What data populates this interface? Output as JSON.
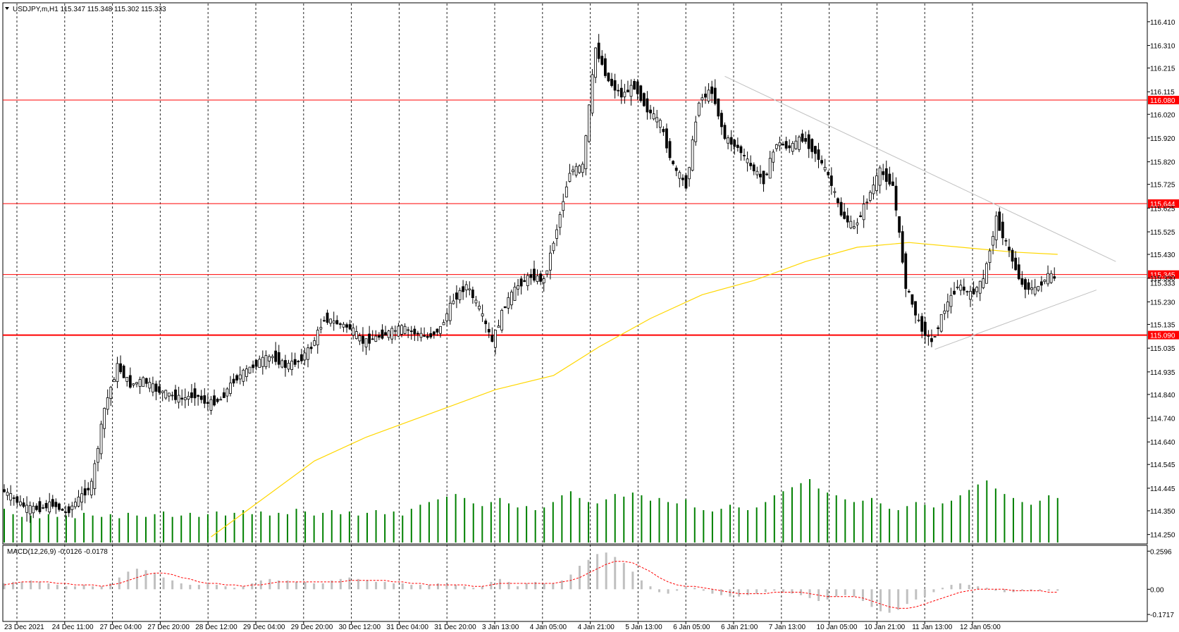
{
  "header": {
    "symbol_line": "USDJPY,m,H1  115.347 115.348 115.302 115.333",
    "macd_label": "MACD(12,26,9) -0.0126 -0.0178"
  },
  "colors": {
    "background": "#ffffff",
    "candle": "#000000",
    "grid": "#000000",
    "level_line": "#ff0000",
    "level_tag_bg": "#ff0000",
    "ma_line": "#ffd700",
    "trendline": "#c0c0c0",
    "volume": "#008000",
    "macd_hist": "#c0c0c0",
    "macd_signal": "#ff0000"
  },
  "chart_data": [
    {
      "type": "candlestick",
      "title": "",
      "x_tick_labels": [
        "23 Dec 2021",
        "24 Dec 11:00",
        "27 Dec 04:00",
        "27 Dec 20:00",
        "28 Dec 12:00",
        "29 Dec 04:00",
        "29 Dec 20:00",
        "30 Dec 12:00",
        "31 Dec 04:00",
        "31 Dec 20:00",
        "3 Jan 13:00",
        "4 Jan 05:00",
        "4 Jan 21:00",
        "5 Jan 13:00",
        "6 Jan 05:00",
        "6 Jan 21:00",
        "7 Jan 13:00",
        "10 Jan 05:00",
        "10 Jan 21:00",
        "11 Jan 13:00",
        "12 Jan 05:00"
      ],
      "y_tick_labels": [
        "116.410",
        "116.310",
        "116.215",
        "116.115",
        "116.020",
        "115.920",
        "115.820",
        "115.725",
        "115.625",
        "115.525",
        "115.430",
        "115.330",
        "115.230",
        "115.135",
        "115.035",
        "114.935",
        "114.840",
        "114.740",
        "114.640",
        "114.545",
        "114.445",
        "114.350",
        "114.250"
      ],
      "ylim": [
        114.24,
        116.46
      ],
      "grid": "vertical dashed",
      "horizontal_levels": [
        {
          "value": 116.08,
          "label": "116.080"
        },
        {
          "value": 115.644,
          "label": "115.644"
        },
        {
          "value": 115.345,
          "label": "115.345"
        },
        {
          "value": 115.09,
          "label": "115.090"
        }
      ],
      "current_price_label": "115.333",
      "price_path": [
        {
          "x": 0,
          "y": 114.44
        },
        {
          "x": 4,
          "y": 114.4
        },
        {
          "x": 8,
          "y": 114.36
        },
        {
          "x": 12,
          "y": 114.36
        },
        {
          "x": 16,
          "y": 114.38
        },
        {
          "x": 20,
          "y": 114.34
        },
        {
          "x": 24,
          "y": 114.4
        },
        {
          "x": 28,
          "y": 114.46
        },
        {
          "x": 32,
          "y": 114.78
        },
        {
          "x": 36,
          "y": 114.96
        },
        {
          "x": 40,
          "y": 114.88
        },
        {
          "x": 44,
          "y": 114.9
        },
        {
          "x": 48,
          "y": 114.86
        },
        {
          "x": 52,
          "y": 114.84
        },
        {
          "x": 56,
          "y": 114.82
        },
        {
          "x": 60,
          "y": 114.84
        },
        {
          "x": 64,
          "y": 114.8
        },
        {
          "x": 68,
          "y": 114.82
        },
        {
          "x": 72,
          "y": 114.9
        },
        {
          "x": 76,
          "y": 114.94
        },
        {
          "x": 80,
          "y": 114.98
        },
        {
          "x": 84,
          "y": 115.0
        },
        {
          "x": 88,
          "y": 114.96
        },
        {
          "x": 92,
          "y": 114.98
        },
        {
          "x": 96,
          "y": 115.04
        },
        {
          "x": 100,
          "y": 115.16
        },
        {
          "x": 104,
          "y": 115.14
        },
        {
          "x": 108,
          "y": 115.12
        },
        {
          "x": 112,
          "y": 115.06
        },
        {
          "x": 116,
          "y": 115.08
        },
        {
          "x": 120,
          "y": 115.1
        },
        {
          "x": 124,
          "y": 115.12
        },
        {
          "x": 128,
          "y": 115.1
        },
        {
          "x": 132,
          "y": 115.08
        },
        {
          "x": 136,
          "y": 115.12
        },
        {
          "x": 140,
          "y": 115.24
        },
        {
          "x": 144,
          "y": 115.3
        },
        {
          "x": 148,
          "y": 115.2
        },
        {
          "x": 152,
          "y": 115.06
        },
        {
          "x": 156,
          "y": 115.22
        },
        {
          "x": 160,
          "y": 115.3
        },
        {
          "x": 164,
          "y": 115.34
        },
        {
          "x": 168,
          "y": 115.32
        },
        {
          "x": 172,
          "y": 115.54
        },
        {
          "x": 176,
          "y": 115.78
        },
        {
          "x": 180,
          "y": 115.8
        },
        {
          "x": 184,
          "y": 116.3
        },
        {
          "x": 188,
          "y": 116.16
        },
        {
          "x": 192,
          "y": 116.1
        },
        {
          "x": 196,
          "y": 116.14
        },
        {
          "x": 200,
          "y": 116.04
        },
        {
          "x": 204,
          "y": 115.98
        },
        {
          "x": 208,
          "y": 115.8
        },
        {
          "x": 212,
          "y": 115.72
        },
        {
          "x": 216,
          "y": 116.08
        },
        {
          "x": 220,
          "y": 116.12
        },
        {
          "x": 224,
          "y": 115.92
        },
        {
          "x": 228,
          "y": 115.88
        },
        {
          "x": 232,
          "y": 115.8
        },
        {
          "x": 236,
          "y": 115.74
        },
        {
          "x": 240,
          "y": 115.9
        },
        {
          "x": 244,
          "y": 115.88
        },
        {
          "x": 248,
          "y": 115.92
        },
        {
          "x": 252,
          "y": 115.86
        },
        {
          "x": 256,
          "y": 115.76
        },
        {
          "x": 260,
          "y": 115.6
        },
        {
          "x": 264,
          "y": 115.54
        },
        {
          "x": 268,
          "y": 115.66
        },
        {
          "x": 272,
          "y": 115.78
        },
        {
          "x": 276,
          "y": 115.72
        },
        {
          "x": 280,
          "y": 115.3
        },
        {
          "x": 284,
          "y": 115.14
        },
        {
          "x": 288,
          "y": 115.06
        },
        {
          "x": 292,
          "y": 115.2
        },
        {
          "x": 296,
          "y": 115.3
        },
        {
          "x": 300,
          "y": 115.26
        },
        {
          "x": 304,
          "y": 115.32
        },
        {
          "x": 308,
          "y": 115.58
        },
        {
          "x": 312,
          "y": 115.44
        },
        {
          "x": 316,
          "y": 115.3
        },
        {
          "x": 320,
          "y": 115.28
        },
        {
          "x": 324,
          "y": 115.34
        },
        {
          "x": 326,
          "y": 115.33
        }
      ],
      "moving_average_path": [
        {
          "x": 64,
          "y": 114.24
        },
        {
          "x": 80,
          "y": 114.4
        },
        {
          "x": 96,
          "y": 114.56
        },
        {
          "x": 112,
          "y": 114.66
        },
        {
          "x": 132,
          "y": 114.76
        },
        {
          "x": 152,
          "y": 114.86
        },
        {
          "x": 170,
          "y": 114.92
        },
        {
          "x": 184,
          "y": 115.04
        },
        {
          "x": 200,
          "y": 115.16
        },
        {
          "x": 216,
          "y": 115.26
        },
        {
          "x": 232,
          "y": 115.32
        },
        {
          "x": 248,
          "y": 115.4
        },
        {
          "x": 264,
          "y": 115.46
        },
        {
          "x": 280,
          "y": 115.48
        },
        {
          "x": 296,
          "y": 115.46
        },
        {
          "x": 312,
          "y": 115.44
        },
        {
          "x": 326,
          "y": 115.43
        }
      ],
      "trendlines": [
        {
          "from": {
            "x": 223,
            "y": 116.18
          },
          "to": {
            "x": 344,
            "y": 115.4
          }
        },
        {
          "from": {
            "x": 288,
            "y": 115.03
          },
          "to": {
            "x": 338,
            "y": 115.28
          }
        }
      ],
      "volume": [
        50,
        42,
        38,
        40,
        36,
        42,
        38,
        40,
        36,
        44,
        40,
        38,
        42,
        36,
        44,
        40,
        38,
        42,
        46,
        38,
        40,
        44,
        38,
        42,
        46,
        40,
        44,
        48,
        42,
        46,
        40,
        44,
        42,
        50,
        46,
        40,
        44,
        48,
        42,
        46,
        40,
        44,
        48,
        42,
        46,
        40,
        50,
        56,
        60,
        64,
        68,
        72,
        66,
        58,
        54,
        60,
        66,
        58,
        52,
        54,
        48,
        52,
        60,
        70,
        76,
        66,
        60,
        58,
        64,
        72,
        68,
        74,
        70,
        62,
        66,
        60,
        58,
        64,
        52,
        48,
        46,
        50,
        56,
        52,
        48,
        52,
        60,
        70,
        76,
        82,
        88,
        94,
        80,
        74,
        70,
        64,
        60,
        62,
        66,
        58,
        50,
        48,
        54,
        60,
        56,
        52,
        58,
        62,
        70,
        78,
        86,
        92,
        80,
        72,
        66,
        60,
        56,
        62,
        70,
        66
      ],
      "macd": {
        "label": "MACD(12,26,9) -0.0126 -0.0178",
        "y_tick_labels": [
          "0.2596",
          "0.00",
          "-0.1717"
        ],
        "ylim": [
          -0.2,
          0.28
        ],
        "histogram": [
          0.04,
          0.05,
          0.05,
          0.06,
          0.05,
          0.04,
          0.03,
          0.02,
          0.02,
          0.03,
          0.02,
          0.02,
          0.04,
          0.08,
          0.12,
          0.14,
          0.13,
          0.11,
          0.08,
          0.06,
          0.04,
          0.03,
          0.03,
          0.04,
          0.03,
          0.02,
          0.01,
          0.02,
          0.04,
          0.06,
          0.07,
          0.06,
          0.06,
          0.05,
          0.05,
          0.04,
          0.04,
          0.06,
          0.07,
          0.08,
          0.07,
          0.06,
          0.05,
          0.05,
          0.04,
          0.04,
          0.03,
          0.03,
          0.03,
          0.04,
          0.03,
          0.03,
          0.02,
          0.01,
          0.02,
          0.05,
          0.07,
          0.05,
          0.02,
          0.04,
          0.05,
          0.04,
          0.04,
          0.06,
          0.1,
          0.16,
          0.2,
          0.24,
          0.25,
          0.22,
          0.18,
          0.12,
          0.06,
          0.02,
          -0.02,
          -0.03,
          -0.01,
          0.02,
          0.01,
          -0.01,
          -0.03,
          -0.04,
          -0.05,
          -0.05,
          -0.04,
          -0.03,
          -0.02,
          -0.01,
          -0.02,
          -0.03,
          -0.04,
          -0.06,
          -0.08,
          -0.07,
          -0.05,
          -0.04,
          -0.05,
          -0.08,
          -0.12,
          -0.15,
          -0.16,
          -0.14,
          -0.1,
          -0.07,
          -0.05,
          -0.02,
          0.01,
          0.03,
          0.04,
          0.03,
          0.02,
          0.01,
          -0.01,
          -0.02,
          -0.02,
          -0.01,
          -0.01,
          -0.01,
          -0.01,
          -0.01
        ],
        "signal": [
          0.03,
          0.04,
          0.05,
          0.05,
          0.05,
          0.05,
          0.04,
          0.04,
          0.03,
          0.03,
          0.03,
          0.02,
          0.03,
          0.04,
          0.06,
          0.08,
          0.1,
          0.11,
          0.11,
          0.1,
          0.08,
          0.07,
          0.05,
          0.04,
          0.04,
          0.03,
          0.03,
          0.02,
          0.03,
          0.03,
          0.04,
          0.05,
          0.05,
          0.05,
          0.05,
          0.05,
          0.05,
          0.05,
          0.05,
          0.06,
          0.06,
          0.06,
          0.06,
          0.06,
          0.05,
          0.05,
          0.04,
          0.04,
          0.03,
          0.03,
          0.03,
          0.03,
          0.03,
          0.02,
          0.02,
          0.03,
          0.04,
          0.04,
          0.04,
          0.04,
          0.04,
          0.04,
          0.04,
          0.05,
          0.06,
          0.08,
          0.11,
          0.14,
          0.17,
          0.19,
          0.19,
          0.18,
          0.15,
          0.12,
          0.08,
          0.05,
          0.03,
          0.02,
          0.02,
          0.01,
          0.0,
          -0.01,
          -0.02,
          -0.03,
          -0.03,
          -0.03,
          -0.03,
          -0.02,
          -0.02,
          -0.02,
          -0.02,
          -0.03,
          -0.04,
          -0.05,
          -0.05,
          -0.05,
          -0.05,
          -0.06,
          -0.08,
          -0.1,
          -0.12,
          -0.13,
          -0.13,
          -0.12,
          -0.1,
          -0.08,
          -0.06,
          -0.04,
          -0.02,
          -0.01,
          0.0,
          0.0,
          0.0,
          0.0,
          -0.01,
          -0.01,
          -0.01,
          -0.01,
          -0.02,
          -0.02
        ]
      }
    }
  ]
}
